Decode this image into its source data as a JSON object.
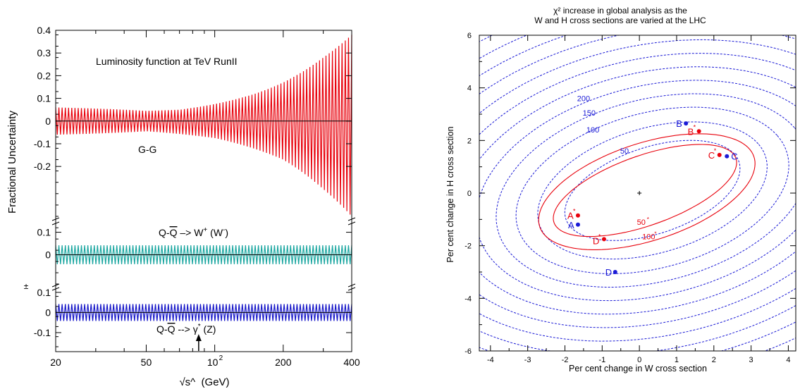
{
  "chart_data": [
    {
      "type": "line",
      "xlabel": "√s^  (GeV)",
      "ylabel": "Fractional Uncertainty",
      "xscale": "log",
      "xlim": [
        20,
        400
      ],
      "x_ticks": [
        "20",
        "50",
        "10",
        "200",
        "400"
      ],
      "x_tick_sup": "2",
      "x_tick_values": [
        20,
        50,
        100,
        200,
        400
      ],
      "arrow_x": 85,
      "pm_label": "±",
      "panels": [
        {
          "id": "gg",
          "title": "Luminosity function at TeV RunII",
          "label": "G-G",
          "ylim": [
            -0.42,
            0.4
          ],
          "y_ticks": [
            "0.4",
            "0.3",
            "0.2",
            "0.1",
            "0",
            "-0.1",
            "-0.2"
          ],
          "y_tick_values": [
            0.4,
            0.3,
            0.2,
            0.1,
            0,
            -0.1,
            -0.2
          ],
          "color": "#e8000b",
          "band_at_x": {
            "x": [
              20,
              30,
              50,
              70,
              100,
              150,
              200,
              300,
              400
            ],
            "half_width": [
              0.06,
              0.055,
              0.045,
              0.05,
              0.075,
              0.12,
              0.17,
              0.28,
              0.38
            ]
          },
          "lower_half_width": {
            "x": [
              20,
              50,
              100,
              200,
              300,
              400
            ],
            "value": [
              0.06,
              0.045,
              0.075,
              0.17,
              0.3,
              0.42
            ]
          }
        },
        {
          "id": "qq_w",
          "label_parts": [
            "Q-",
            "Q",
            " –> W",
            "+",
            " (W",
            "-",
            ")"
          ],
          "ylim": [
            -0.13,
            0.13
          ],
          "y_ticks": [
            "0.1",
            "0"
          ],
          "y_tick_values": [
            0.1,
            0
          ],
          "color": "#1aa6a0",
          "half_width": 0.042
        },
        {
          "id": "qq_z",
          "label_parts": [
            "Q-",
            "Q",
            " --> γ",
            "*",
            " (Z)"
          ],
          "ylim": [
            -0.17,
            0.11
          ],
          "y_ticks": [
            "0.1",
            "0",
            "-0.1"
          ],
          "y_tick_values": [
            0.1,
            0,
            -0.1
          ],
          "color": "#1515c8",
          "half_width": 0.042
        }
      ]
    },
    {
      "type": "contour",
      "title_line1": "χ² increase in global analysis as the",
      "title_line2": "W and H cross sections are varied at the LHC",
      "xlabel": "Per cent change in W cross section",
      "ylabel": "Per cent change in H cross section",
      "xlim": [
        -4.3,
        4.2
      ],
      "ylim": [
        -6,
        6
      ],
      "x_ticks": [
        -4,
        -3,
        -2,
        -1,
        0,
        1,
        2,
        3,
        4
      ],
      "y_ticks": [
        -6,
        -4,
        -2,
        0,
        2,
        4,
        6
      ],
      "center": [
        0,
        0
      ],
      "blue_contour_labels": [
        "200",
        "150",
        "100",
        "50"
      ],
      "red_contour_labels": [
        "50",
        "100"
      ],
      "label_star": "*",
      "blue_points": [
        {
          "name": "A",
          "x": -1.65,
          "y": -1.2
        },
        {
          "name": "B",
          "x": 1.25,
          "y": 2.65
        },
        {
          "name": "C",
          "x": 2.35,
          "y": 1.4
        },
        {
          "name": "D",
          "x": -0.65,
          "y": -3.0
        }
      ],
      "red_points": [
        {
          "name": "A",
          "x": -1.65,
          "y": -0.85
        },
        {
          "name": "B",
          "x": 1.6,
          "y": 2.35
        },
        {
          "name": "C",
          "x": 2.15,
          "y": 1.45
        },
        {
          "name": "D",
          "x": -0.95,
          "y": -1.75
        }
      ],
      "colors": {
        "blue": "#1a1ad6",
        "red": "#e8000b"
      }
    }
  ]
}
